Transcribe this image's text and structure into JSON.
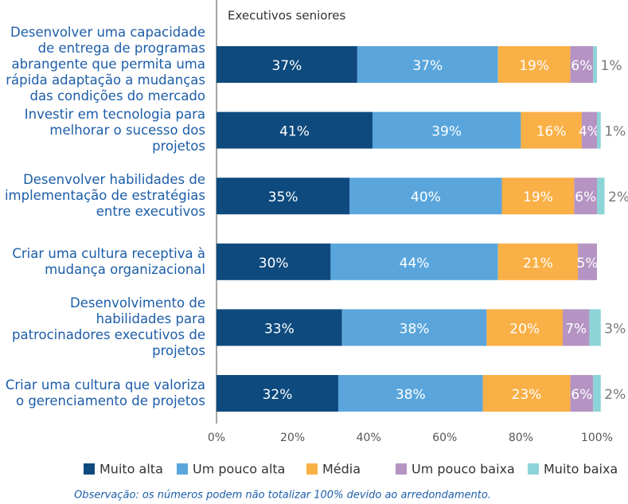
{
  "chart_data": {
    "type": "stacked-bar-horizontal",
    "title": "Executivos seniores",
    "note": "Observação: os números podem não totalizar 100% devido ao arredondamento.",
    "categories": [
      "Desenvolver uma capacidade de entrega de programas abrangente que permita uma rápida adaptação a mudanças das condições do mercado",
      "Investir em tecnologia para melhorar o sucesso dos projetos",
      "Desenvolver habilidades de implementação de estratégias entre executivos",
      "Criar uma cultura receptiva à mudança organizacional",
      "Desenvolvimento de habilidades para patrocinadores executivos de projetos",
      "Criar uma cultura que valoriza o gerenciamento de projetos"
    ],
    "series": [
      {
        "name": "Muito alta",
        "color": "#0e4a7e",
        "values": [
          37,
          41,
          35,
          30,
          33,
          32
        ],
        "value_labels": [
          "37%",
          "41%",
          "35%",
          "30%",
          "33%",
          "32%"
        ]
      },
      {
        "name": "Um pouco alta",
        "color": "#5aa6dc",
        "values": [
          37,
          39,
          40,
          44,
          38,
          38
        ],
        "value_labels": [
          "37%",
          "39%",
          "40%",
          "44%",
          "38%",
          "38%"
        ]
      },
      {
        "name": "Média",
        "color": "#f9b046",
        "values": [
          19,
          16,
          19,
          21,
          20,
          23
        ],
        "value_labels": [
          "19%",
          "16%",
          "19%",
          "21%",
          "20%",
          "23%"
        ]
      },
      {
        "name": "Um pouco baixa",
        "color": "#b594c3",
        "values": [
          6,
          4,
          6,
          5,
          7,
          6
        ],
        "value_labels": [
          "6%",
          "4%",
          "6%",
          "5%",
          "7%",
          "6%"
        ]
      },
      {
        "name": "Muito baixa",
        "color": "#8dd4d8",
        "values": [
          1,
          1,
          2,
          null,
          3,
          2
        ],
        "value_labels": [
          "1%",
          "1%",
          "2%",
          null,
          "3%",
          "2%"
        ]
      }
    ],
    "xlim": [
      0,
      100
    ],
    "xticks": [
      {
        "value": 0,
        "label": "0%"
      },
      {
        "value": 20,
        "label": "20%"
      },
      {
        "value": 40,
        "label": "40%"
      },
      {
        "value": 60,
        "label": "60%"
      },
      {
        "value": 80,
        "label": "80%"
      },
      {
        "value": 100,
        "label": "100%"
      }
    ]
  }
}
